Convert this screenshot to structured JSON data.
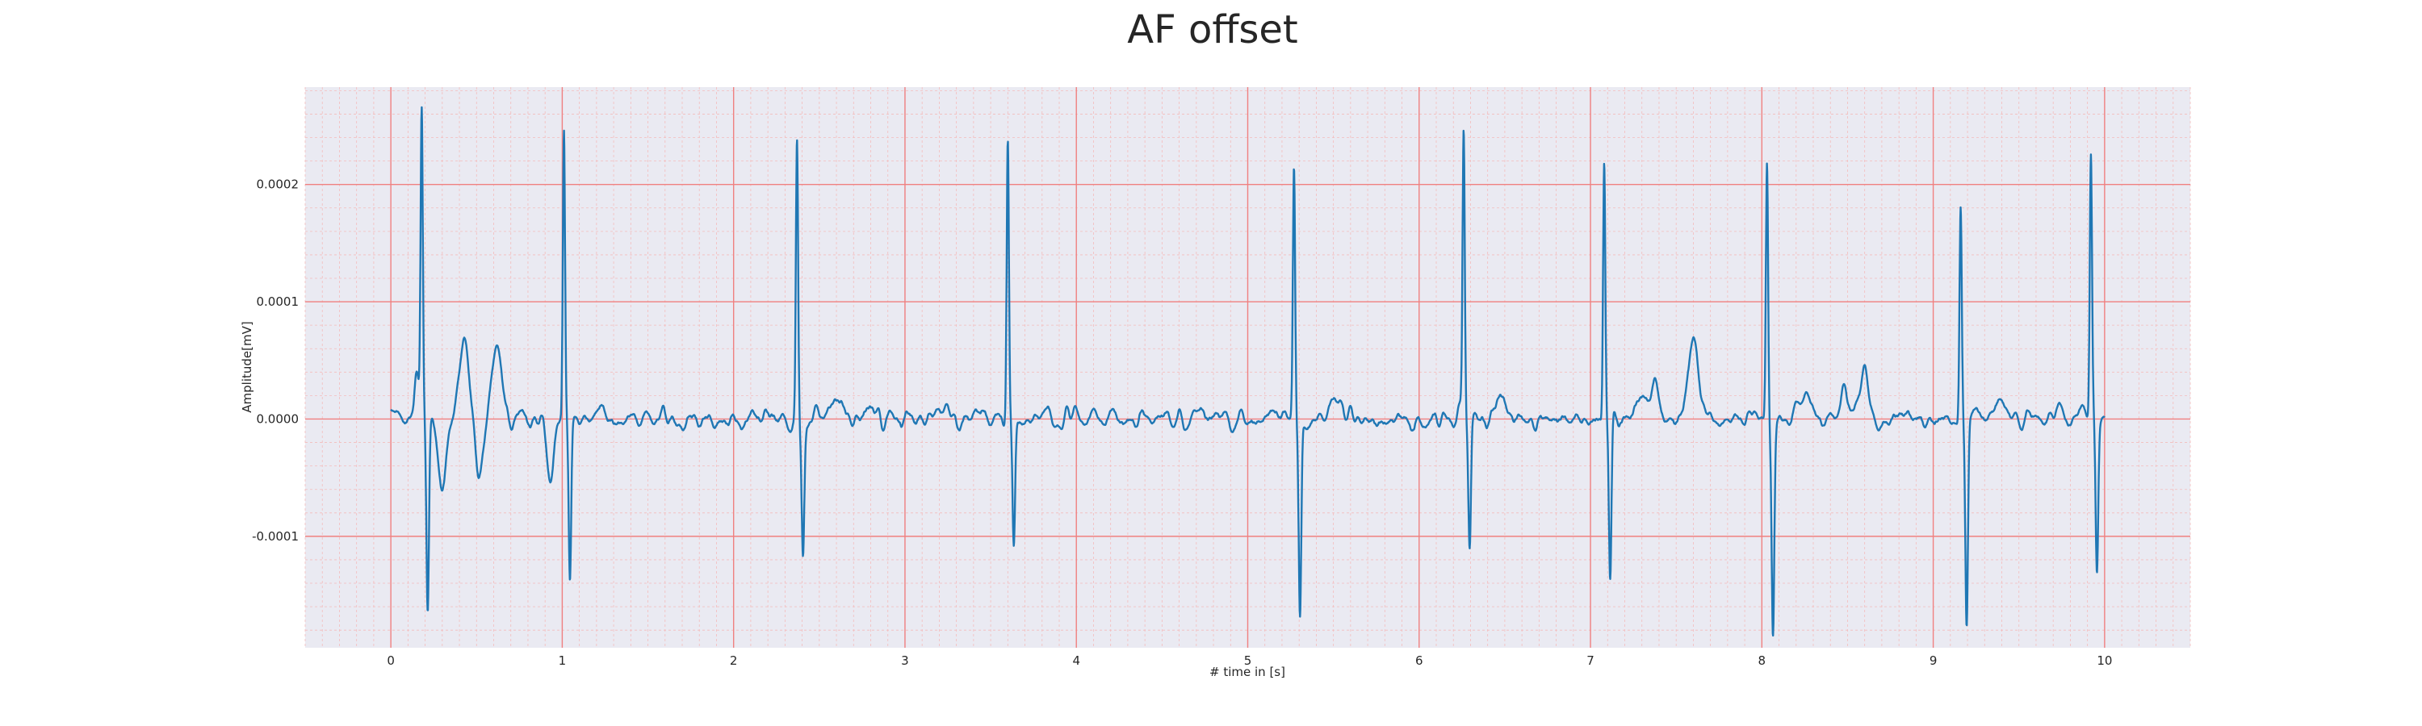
{
  "chart_data": {
    "type": "line",
    "title": "AF offset",
    "xlabel": "# time in [s]",
    "ylabel": "Amplitude[mV]",
    "xlim": [
      -0.5,
      10.5
    ],
    "ylim": [
      -0.000195,
      0.000283
    ],
    "x_ticks": [
      0,
      1,
      2,
      3,
      4,
      5,
      6,
      7,
      8,
      9,
      10
    ],
    "y_ticks": [
      -0.0001,
      0.0,
      0.0001,
      0.0002
    ],
    "y_tick_labels": [
      "-0.0001",
      "0.0000",
      "0.0001",
      "0.0002"
    ],
    "grid": true,
    "grid_minor": true,
    "legend": "none",
    "colors": {
      "background": "#eaeaf2",
      "line": "#1f77b4",
      "grid_major": "#f08080",
      "grid_minor": "#f4bcbc"
    },
    "series": [
      {
        "beats": [
          {
            "t": 0.18,
            "peak": 0.000262,
            "trough": -0.000166
          },
          {
            "t": 1.01,
            "peak": 0.000249,
            "trough": -0.000144
          },
          {
            "t": 2.37,
            "peak": 0.000238,
            "trough": -0.000106
          },
          {
            "t": 3.6,
            "peak": 0.00024,
            "trough": -0.000108
          },
          {
            "t": 5.27,
            "peak": 0.000213,
            "trough": -0.000166
          },
          {
            "t": 6.26,
            "peak": 0.000246,
            "trough": -0.00011
          },
          {
            "t": 7.08,
            "peak": 0.000228,
            "trough": -0.000141
          },
          {
            "t": 8.03,
            "peak": 0.000224,
            "trough": -0.000173
          },
          {
            "t": 9.16,
            "peak": 0.000178,
            "trough": -0.000171
          },
          {
            "t": 9.92,
            "peak": 0.000221,
            "trough": -0.00013
          }
        ]
      }
    ]
  }
}
